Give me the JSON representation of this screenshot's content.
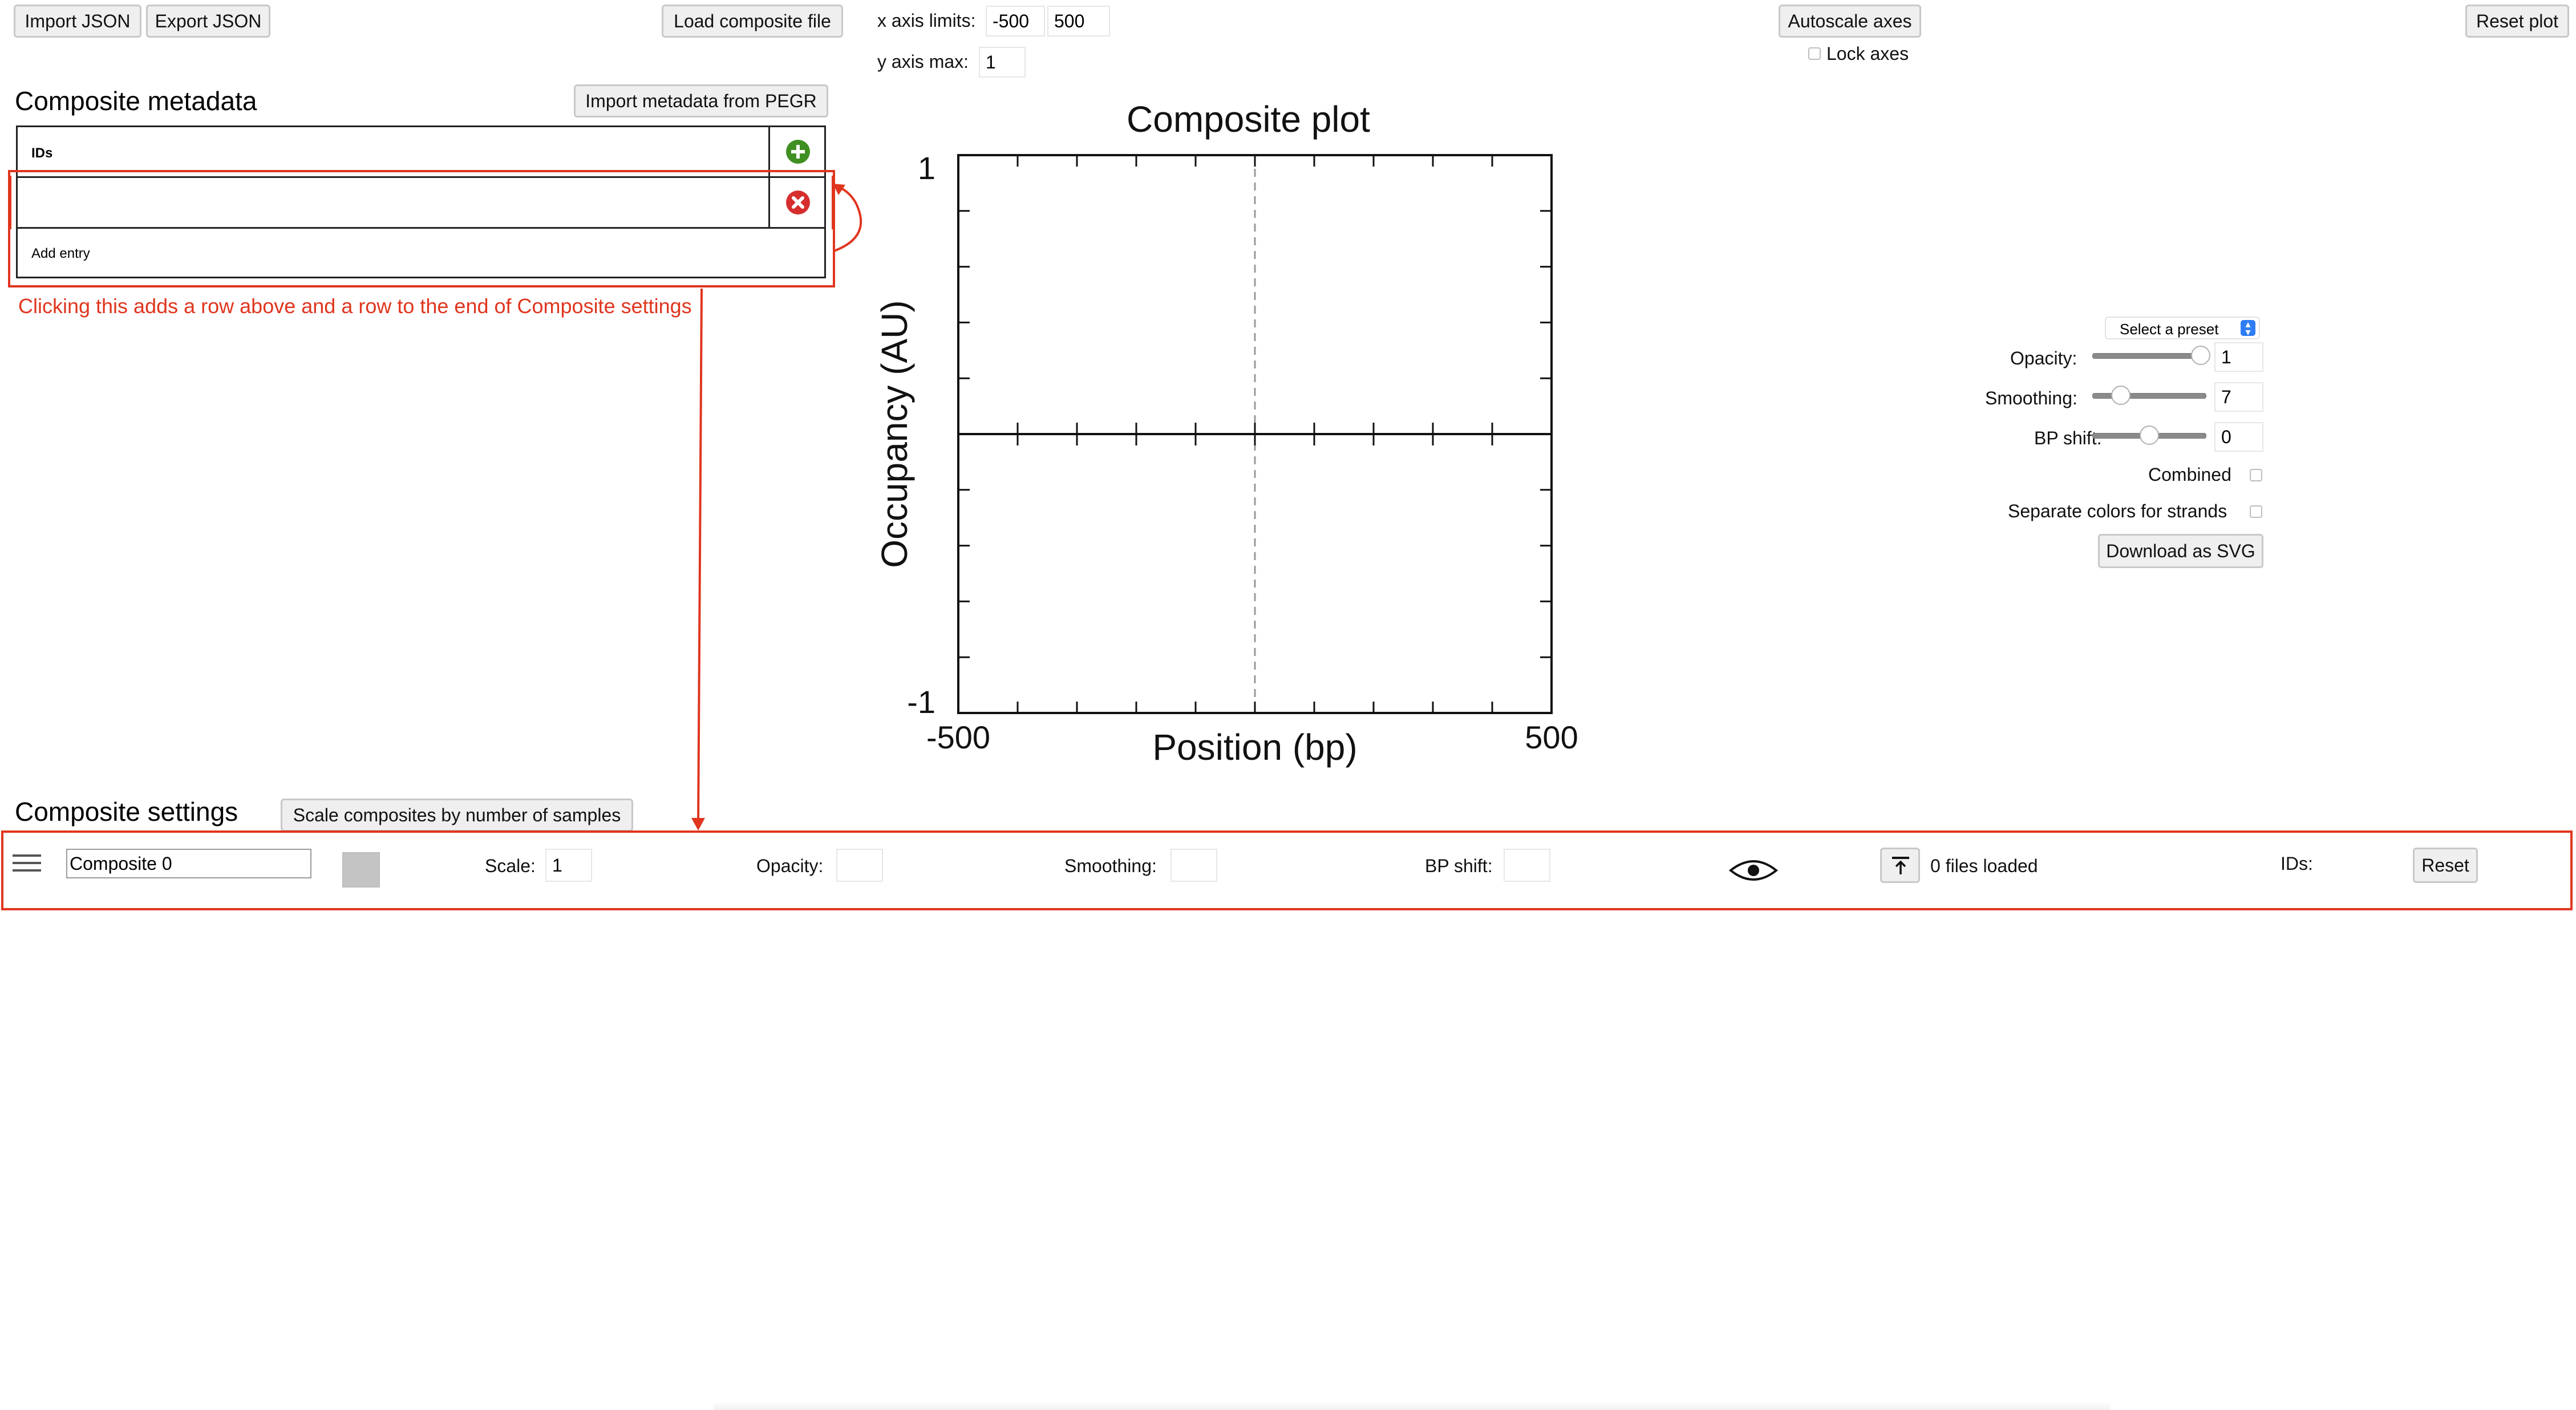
{
  "toolbar": {
    "import_json": "Import JSON",
    "export_json": "Export JSON",
    "load_composite": "Load composite file",
    "x_axis_label": "x axis limits:",
    "x_min": "-500",
    "x_max": "500",
    "y_axis_label": "y axis max:",
    "y_max": "1",
    "autoscale": "Autoscale axes",
    "lock_axes": "Lock axes",
    "reset_plot": "Reset plot"
  },
  "metadata": {
    "title": "Composite metadata",
    "import_pegr": "Import metadata from PEGR",
    "ids_header": "IDs",
    "row_value": "",
    "add_entry": "Add entry",
    "annotation": "Clicking this adds a row above and a row to the end of Composite settings"
  },
  "plot": {
    "title": "Composite plot",
    "ylabel": "Occupancy (AU)",
    "xlabel": "Position (bp)",
    "ytick_top": "1",
    "ytick_bottom": "-1",
    "xtick_left": "-500",
    "xtick_right": "500"
  },
  "chart_data": {
    "type": "line",
    "title": "Composite plot",
    "xlabel": "Position (bp)",
    "ylabel": "Occupancy (AU)",
    "xlim": [
      -500,
      500
    ],
    "ylim": [
      -1,
      1
    ],
    "xticks": [
      -500,
      500
    ],
    "yticks": [
      1,
      -1
    ],
    "series": []
  },
  "controls": {
    "preset": "Select a preset",
    "opacity_label": "Opacity:",
    "opacity_value": "1",
    "opacity_level": 0.95,
    "smoothing_label": "Smoothing:",
    "smoothing_value": "7",
    "smoothing_level": 0.25,
    "bpshift_label": "BP shift:",
    "bpshift_value": "0",
    "bpshift_level": 0.5,
    "combined": "Combined",
    "separate_colors": "Separate colors for strands",
    "download_svg": "Download as SVG"
  },
  "settings": {
    "title": "Composite settings",
    "scale_button": "Scale composites by number of samples",
    "row": {
      "name": "Composite 0",
      "scale_label": "Scale:",
      "scale_value": "1",
      "opacity_label": "Opacity:",
      "opacity_value": "",
      "smoothing_label": "Smoothing:",
      "smoothing_value": "",
      "bpshift_label": "BP shift:",
      "bpshift_value": "",
      "files_loaded": "0 files loaded",
      "ids_label": "IDs:",
      "reset": "Reset",
      "swatch_color": "#c4c4c4"
    }
  },
  "colors": {
    "annotation": "#e0351e",
    "add_icon": "#3f8f22",
    "remove_icon": "#d62e2e"
  }
}
